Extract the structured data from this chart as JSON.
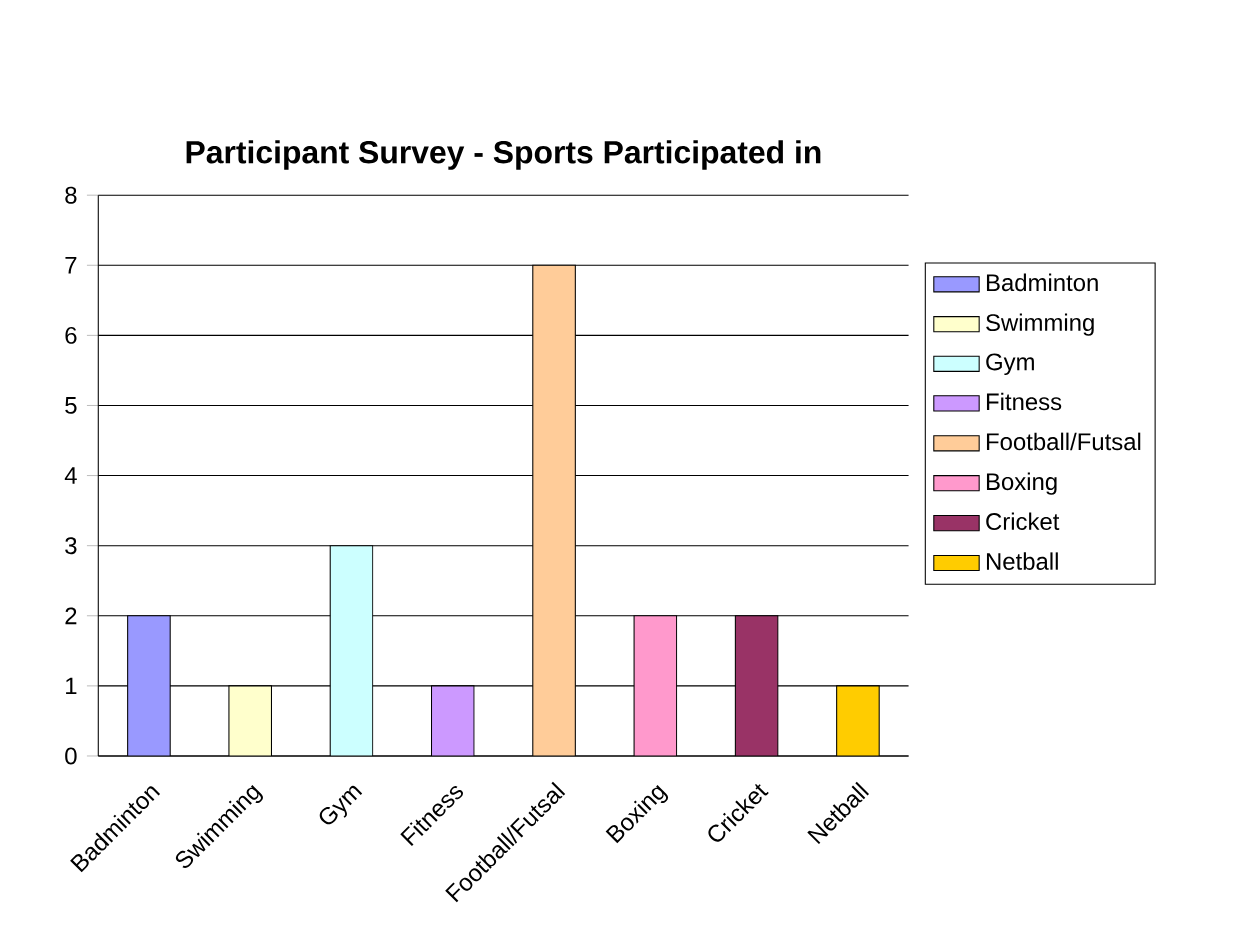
{
  "chart_data": {
    "type": "bar",
    "title": "Participant Survey - Sports Participated in",
    "categories": [
      "Badminton",
      "Swimming",
      "Gym",
      "Fitness",
      "Football/Futsal",
      "Boxing",
      "Cricket",
      "Netball"
    ],
    "series": [
      {
        "name": "Badminton",
        "color": "#9999ff",
        "values": [
          2,
          null,
          null,
          null,
          null,
          null,
          null,
          null
        ]
      },
      {
        "name": "Swimming",
        "color": "#ffffcc",
        "values": [
          null,
          1,
          null,
          null,
          null,
          null,
          null,
          null
        ]
      },
      {
        "name": "Gym",
        "color": "#ccffff",
        "values": [
          null,
          null,
          3,
          null,
          null,
          null,
          null,
          null
        ]
      },
      {
        "name": "Fitness",
        "color": "#cc99ff",
        "values": [
          null,
          null,
          null,
          1,
          null,
          null,
          null,
          null
        ]
      },
      {
        "name": "Football/Futsal",
        "color": "#ffcc99",
        "values": [
          null,
          null,
          null,
          null,
          7,
          null,
          null,
          null
        ]
      },
      {
        "name": "Boxing",
        "color": "#ff99cc",
        "values": [
          null,
          null,
          null,
          null,
          null,
          2,
          null,
          null
        ]
      },
      {
        "name": "Cricket",
        "color": "#993366",
        "values": [
          null,
          null,
          null,
          null,
          null,
          null,
          2,
          null
        ]
      },
      {
        "name": "Netball",
        "color": "#ffcc00",
        "values": [
          null,
          null,
          null,
          null,
          null,
          null,
          null,
          1
        ]
      }
    ],
    "ylim": [
      0,
      8
    ],
    "yticks": [
      0,
      1,
      2,
      3,
      4,
      5,
      6,
      7,
      8
    ],
    "grid": "y",
    "legend": "right"
  }
}
